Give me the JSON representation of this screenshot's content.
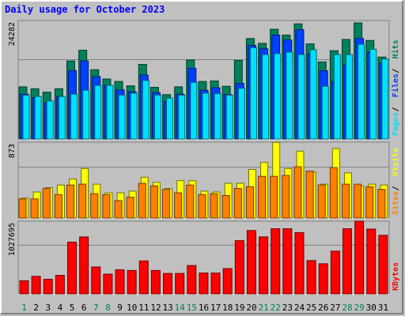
{
  "title": "Daily usage for October 2023",
  "colors": {
    "background": "#c0c0c0",
    "plot_background": "#c0c0c0",
    "grid": "#808080",
    "hits": "#00805c",
    "files": "#0040ff",
    "pages": "#00e0ff",
    "visits": "#ffff00",
    "sites": "#ff8000",
    "kbytes": "#ff0000",
    "weekend_label": "#00805c",
    "weekday_label": "#000000"
  },
  "chart_data": [
    {
      "type": "bar",
      "title": "Daily usage for October 2023",
      "categories": [
        "1",
        "2",
        "3",
        "4",
        "5",
        "6",
        "7",
        "8",
        "9",
        "10",
        "11",
        "12",
        "13",
        "14",
        "15",
        "16",
        "17",
        "18",
        "19",
        "20",
        "21",
        "22",
        "23",
        "24",
        "25",
        "26",
        "27",
        "28",
        "29",
        "30",
        "31"
      ],
      "weekend_days": [
        "1",
        "7",
        "8",
        "14",
        "15",
        "21",
        "22",
        "28",
        "29"
      ],
      "ymax_label": "24282",
      "ylim": [
        0,
        24282
      ],
      "legend": [
        "Pages",
        "Files",
        "Hits"
      ],
      "series": [
        {
          "name": "Hits",
          "values": [
            10700,
            10300,
            9600,
            10300,
            16000,
            18200,
            14200,
            12300,
            11800,
            10900,
            15300,
            10600,
            9100,
            10700,
            16200,
            11800,
            11900,
            10800,
            16100,
            20600,
            19600,
            22500,
            21300,
            23600,
            19500,
            15800,
            18100,
            20400,
            23800,
            20200,
            16800
          ]
        },
        {
          "name": "Files",
          "values": [
            9200,
            8500,
            7400,
            8700,
            14000,
            16000,
            12800,
            11000,
            10100,
            9700,
            13100,
            9500,
            7700,
            9200,
            14500,
            10000,
            10500,
            9100,
            11400,
            19200,
            18500,
            21300,
            20300,
            22400,
            17500,
            14000,
            11800,
            15200,
            20600,
            17800,
            15600
          ]
        },
        {
          "name": "Pages",
          "values": [
            9000,
            8700,
            7800,
            8700,
            9200,
            10000,
            11000,
            11000,
            9000,
            9400,
            12000,
            9000,
            8400,
            9000,
            11600,
            9400,
            9300,
            9000,
            10400,
            18700,
            17300,
            17500,
            17800,
            17300,
            18300,
            10800,
            17300,
            17300,
            19400,
            18400,
            16400
          ]
        }
      ]
    },
    {
      "type": "bar",
      "ymax_label": "873",
      "ylim": [
        0,
        873
      ],
      "legend": [
        "Sites",
        "Visits"
      ],
      "series": [
        {
          "name": "Visits",
          "values": [
            230,
            300,
            350,
            380,
            450,
            570,
            390,
            290,
            290,
            310,
            470,
            410,
            340,
            430,
            430,
            310,
            300,
            400,
            400,
            560,
            640,
            870,
            570,
            770,
            530,
            390,
            800,
            520,
            370,
            390,
            380
          ]
        },
        {
          "name": "Sites",
          "values": [
            220,
            220,
            340,
            270,
            380,
            390,
            280,
            270,
            200,
            240,
            400,
            370,
            330,
            290,
            380,
            270,
            280,
            260,
            340,
            360,
            480,
            480,
            490,
            590,
            540,
            380,
            580,
            390,
            390,
            360,
            330
          ]
        }
      ]
    },
    {
      "type": "bar",
      "ymax_label": "1027695",
      "ylim": [
        0,
        1027695
      ],
      "legend": [
        "KBytes"
      ],
      "series": [
        {
          "name": "KBytes",
          "values": [
            185000,
            248000,
            207000,
            262000,
            732000,
            805000,
            380000,
            279000,
            341000,
            331000,
            466000,
            331000,
            289000,
            289000,
            401000,
            295000,
            295000,
            357000,
            753000,
            896000,
            806000,
            921000,
            921000,
            866000,
            471000,
            426000,
            604000,
            921000,
            1027695,
            916000,
            828000
          ]
        }
      ]
    }
  ]
}
